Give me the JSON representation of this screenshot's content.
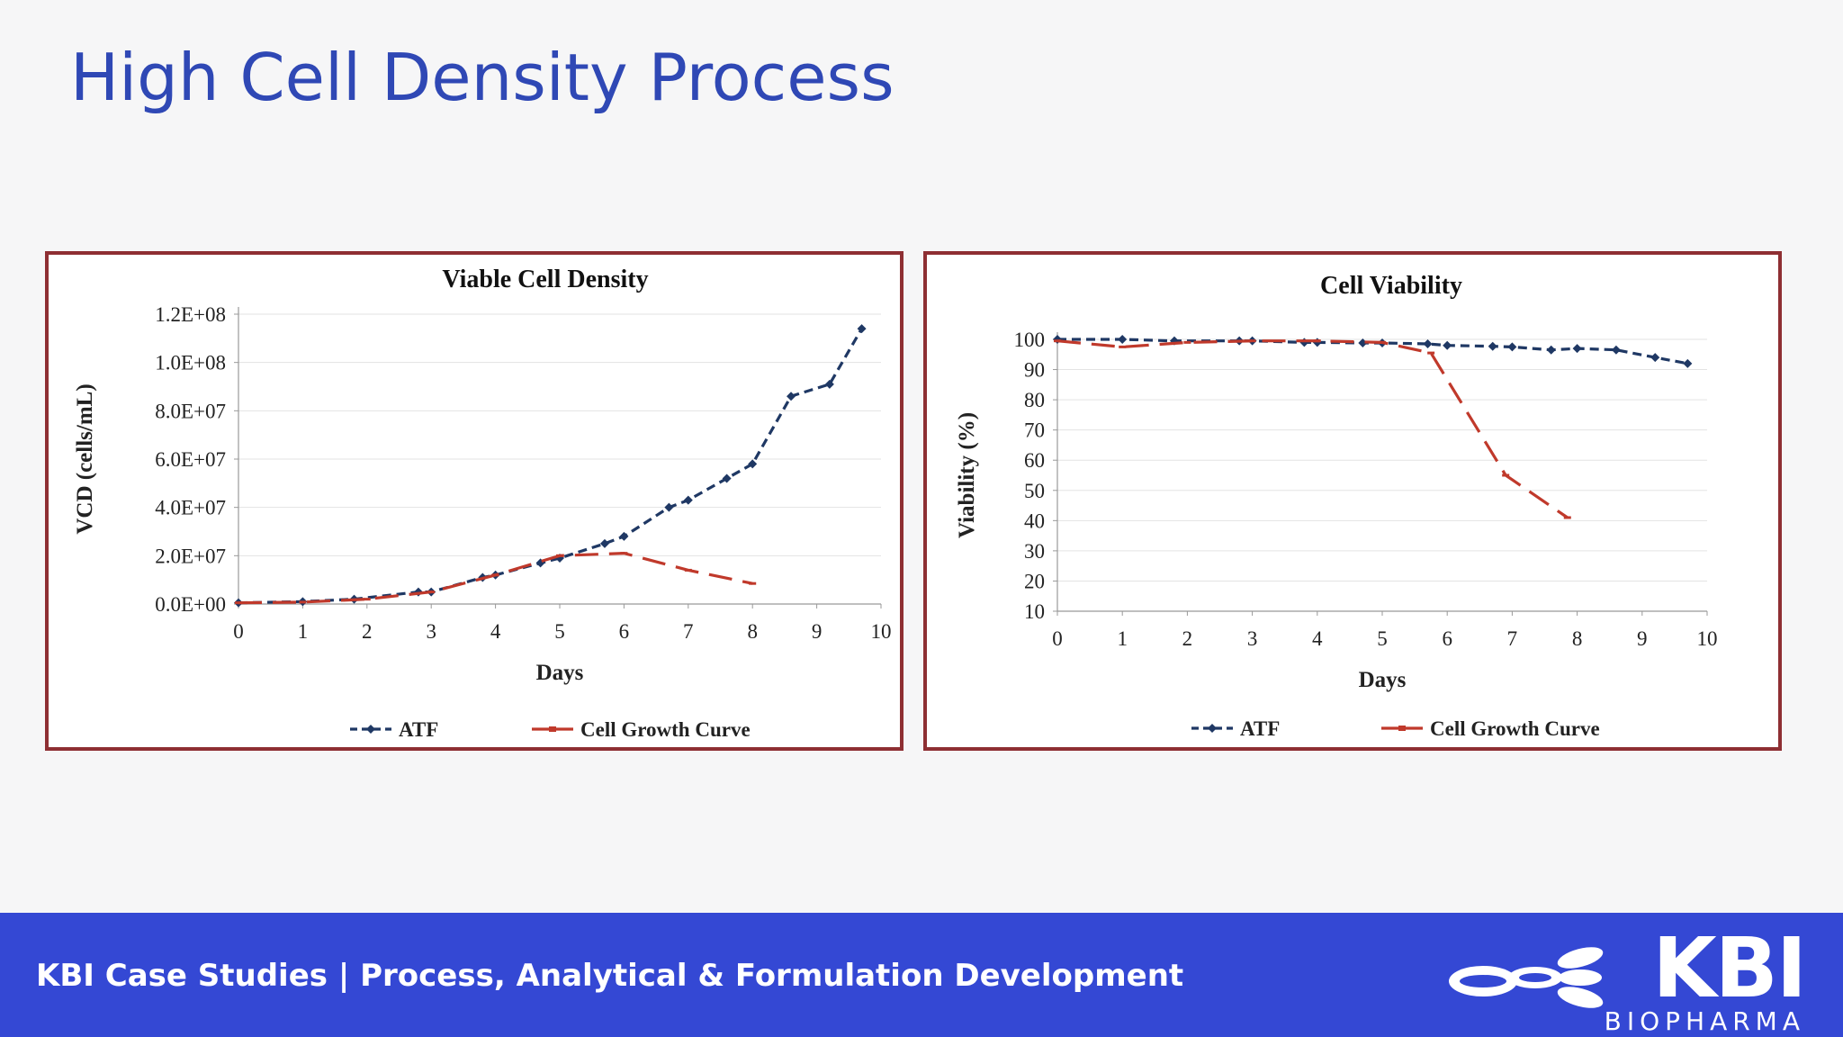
{
  "slide": {
    "title": "High Cell Density Process",
    "footer_text": "KBI Case Studies | Process, Analytical & Formulation Development",
    "logo_text": "KBI",
    "logo_subtext": "BIOPHARMA",
    "colors": {
      "title": "#2f48b5",
      "footer": "#3448d4",
      "panel_border": "#8e2f33",
      "atf": "#1f3864",
      "growth": "#c0392b"
    }
  },
  "chart_data": [
    {
      "type": "line",
      "title": "Viable Cell Density",
      "xlabel": "Days",
      "ylabel": "VCD (cells/mL)",
      "xlim": [
        0,
        10
      ],
      "ylim": [
        0,
        120000000
      ],
      "xticks": [
        "0",
        "1",
        "2",
        "3",
        "4",
        "5",
        "6",
        "7",
        "8",
        "9",
        "10"
      ],
      "yticks": [
        "0.0E+00",
        "2.0E+07",
        "4.0E+07",
        "6.0E+07",
        "8.0E+07",
        "1.0E+08",
        "1.2E+08"
      ],
      "legend_position": "bottom",
      "series": [
        {
          "name": "ATF",
          "style": "dashed-markers",
          "x": [
            0,
            1,
            1.8,
            2.8,
            3,
            3.8,
            4,
            4.7,
            5,
            5.7,
            6,
            6.7,
            7,
            7.6,
            8,
            8.6,
            9.2,
            9.7
          ],
          "y": [
            500000,
            1000000,
            2000000,
            5000000,
            5000000,
            11000000,
            12000000,
            17000000,
            19000000,
            25000000,
            28000000,
            40000000,
            43000000,
            52000000,
            58000000,
            86000000,
            91000000,
            114000000
          ]
        },
        {
          "name": "Cell Growth Curve",
          "style": "long-dash-markers",
          "x": [
            0,
            1,
            2,
            3,
            4,
            5,
            6,
            7,
            8
          ],
          "y": [
            500000,
            800000,
            2000000,
            5000000,
            12000000,
            20000000,
            21000000,
            14000000,
            8500000
          ]
        }
      ]
    },
    {
      "type": "line",
      "title": "Cell Viability",
      "xlabel": "Days",
      "ylabel": "Viability (%)",
      "xlim": [
        0,
        10
      ],
      "ylim": [
        10,
        100
      ],
      "xticks": [
        "0",
        "1",
        "2",
        "3",
        "4",
        "5",
        "6",
        "7",
        "8",
        "9",
        "10"
      ],
      "yticks": [
        "10",
        "20",
        "30",
        "40",
        "50",
        "60",
        "70",
        "80",
        "90",
        "100"
      ],
      "legend_position": "bottom",
      "series": [
        {
          "name": "ATF",
          "style": "dashed-markers",
          "x": [
            0,
            1,
            1.8,
            2.8,
            3,
            3.8,
            4,
            4.7,
            5,
            5.7,
            6,
            6.7,
            7,
            7.6,
            8,
            8.6,
            9.2,
            9.7
          ],
          "y": [
            100,
            100,
            99.5,
            99.5,
            99.5,
            99,
            99,
            98.8,
            98.8,
            98.5,
            98,
            97.7,
            97.5,
            96.5,
            97,
            96.5,
            94,
            92
          ]
        },
        {
          "name": "Cell Growth Curve",
          "style": "long-dash-markers",
          "x": [
            0,
            1,
            2,
            3,
            4,
            5,
            5.75,
            6.9,
            7.85
          ],
          "y": [
            99.5,
            97.5,
            99,
            99.5,
            99.5,
            99,
            95.5,
            55,
            41
          ]
        }
      ]
    }
  ]
}
